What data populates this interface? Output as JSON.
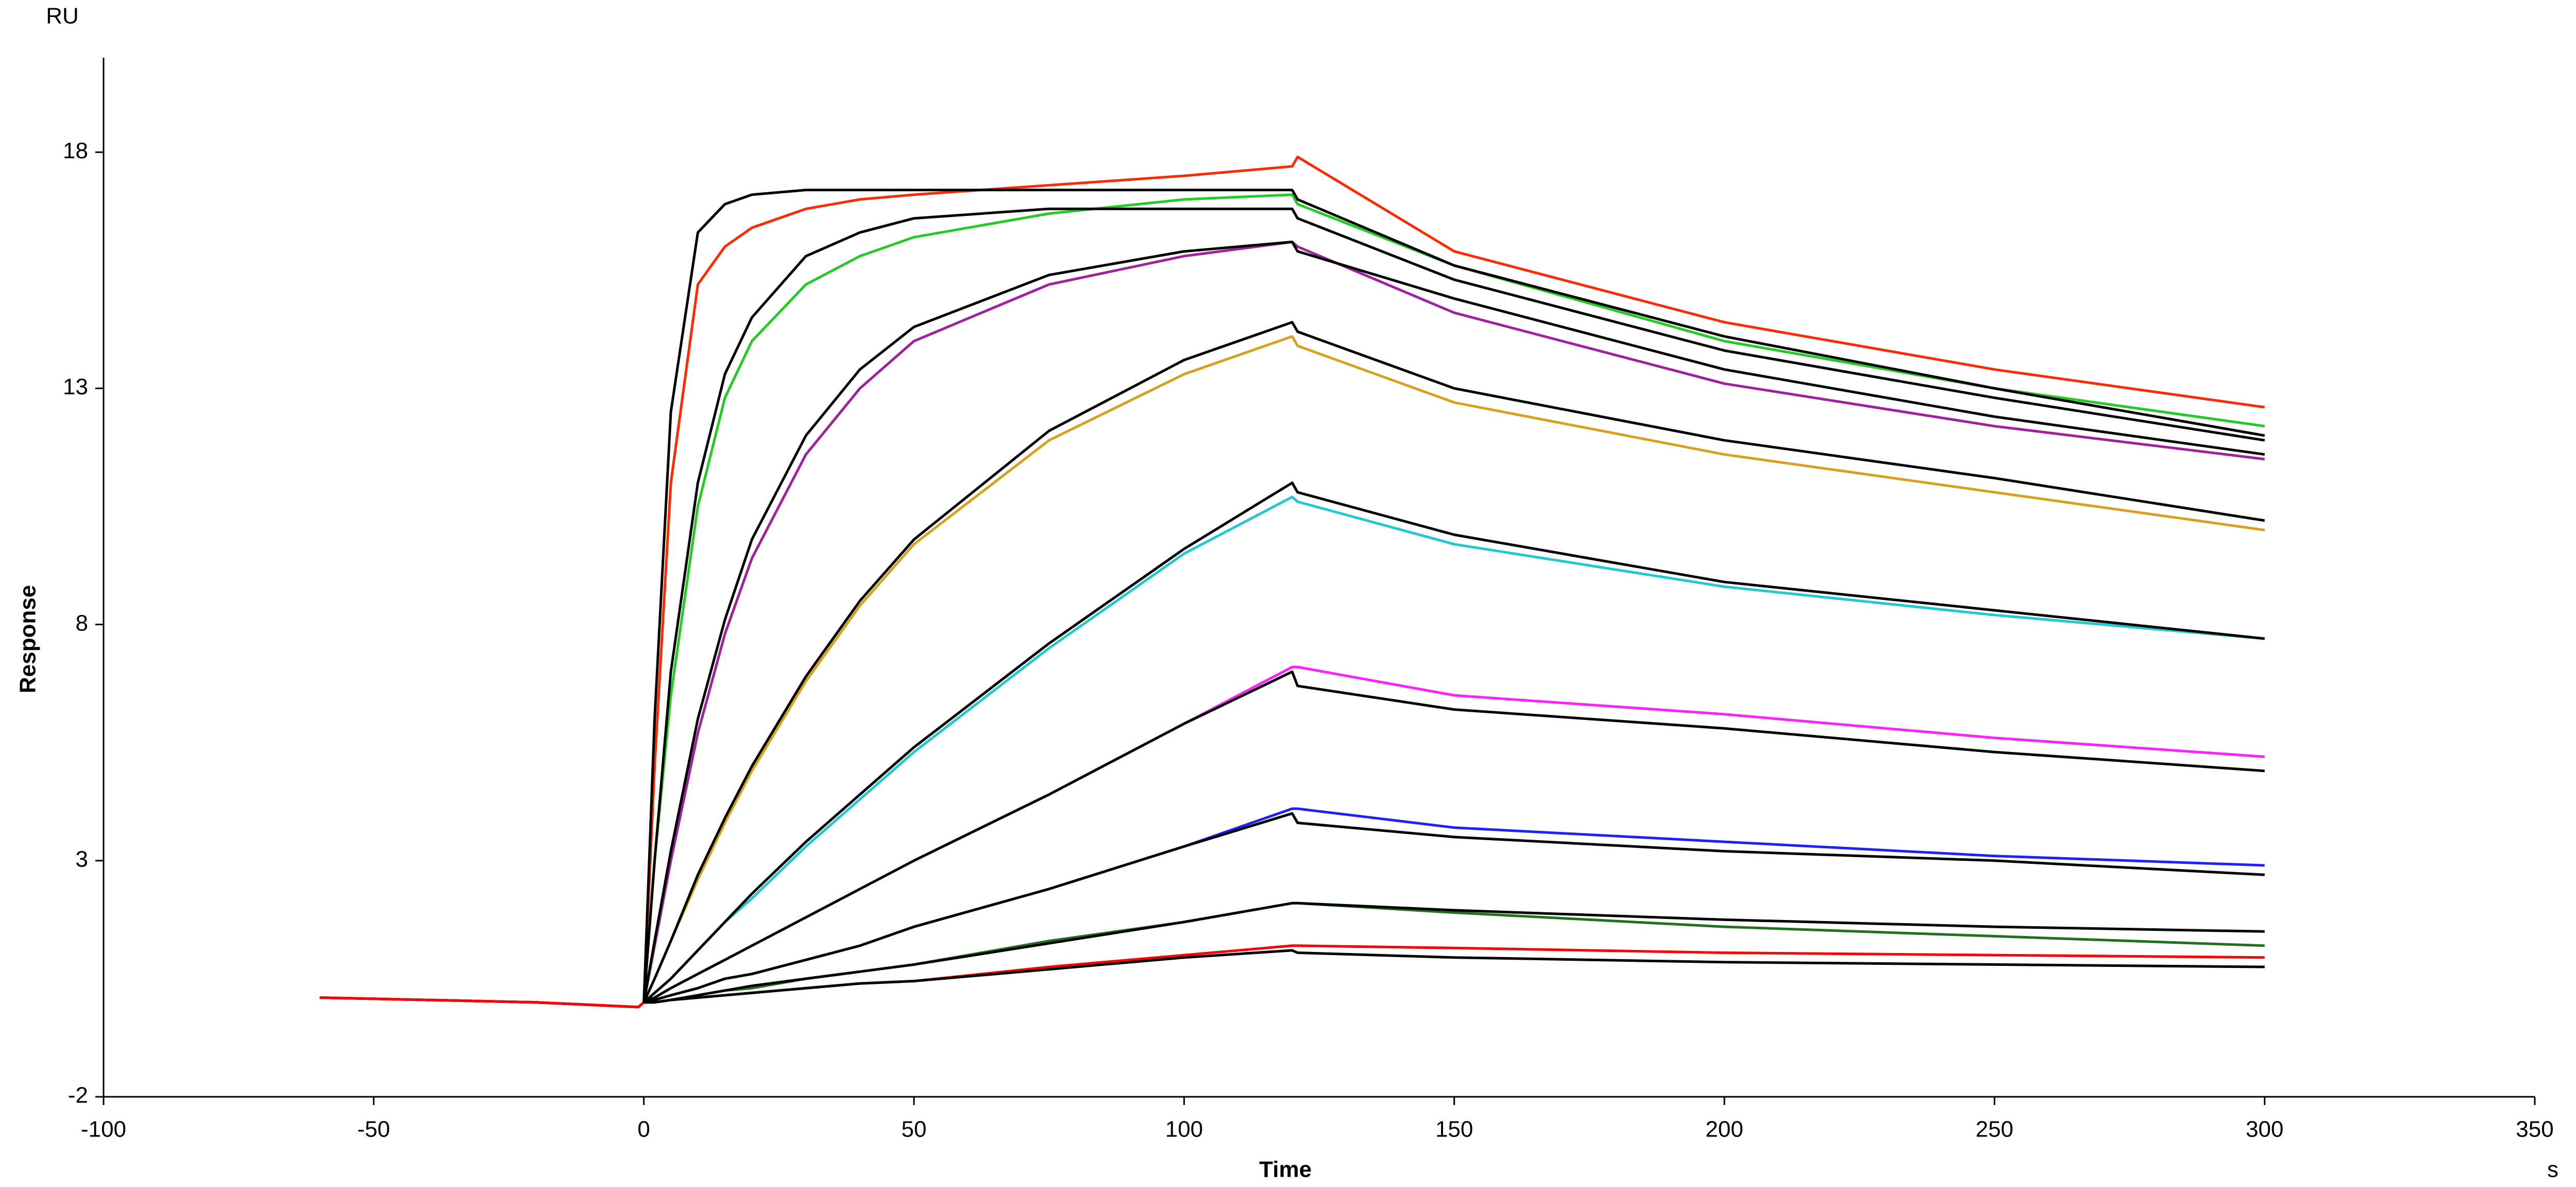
{
  "chart_data": {
    "type": "line",
    "y_unit": "RU",
    "ylabel": "Response",
    "xlabel": "Time",
    "x_unit": "s",
    "x": [
      -60,
      -40,
      -20,
      -1,
      0,
      2,
      5,
      10,
      15,
      20,
      30,
      40,
      50,
      75,
      100,
      120,
      121,
      150,
      200,
      250,
      300
    ],
    "xlim": [
      -100,
      350
    ],
    "xticks": [
      -100,
      -50,
      0,
      50,
      100,
      150,
      200,
      250,
      300,
      350
    ],
    "ylim": [
      -2,
      20
    ],
    "yticks": [
      -2,
      3,
      8,
      13,
      18
    ],
    "grid": false,
    "series": [
      {
        "color": "#ff2a00",
        "values": [
          0.1,
          0.05,
          0,
          -0.1,
          0,
          5,
          11,
          15.2,
          16.0,
          16.4,
          16.8,
          17.0,
          17.1,
          17.3,
          17.5,
          17.7,
          17.9,
          15.9,
          14.4,
          13.4,
          12.6
        ]
      },
      {
        "color": "#22cc22",
        "values": [
          0.1,
          0.05,
          0,
          -0.1,
          0,
          3,
          6.5,
          10.5,
          12.8,
          14.0,
          15.2,
          15.8,
          16.2,
          16.7,
          17.0,
          17.1,
          16.9,
          15.6,
          14.0,
          13.0,
          12.2
        ]
      },
      {
        "color": "#a020a0",
        "values": [
          0.1,
          0.05,
          0,
          -0.1,
          0,
          1.2,
          3,
          5.7,
          7.8,
          9.4,
          11.6,
          13.0,
          14.0,
          15.2,
          15.8,
          16.1,
          16.0,
          14.6,
          13.1,
          12.2,
          11.5
        ]
      },
      {
        "color": "#d9a020",
        "values": [
          0.1,
          0.05,
          0,
          -0.1,
          0,
          0.5,
          1.3,
          2.6,
          3.8,
          4.9,
          6.8,
          8.4,
          9.7,
          11.9,
          13.3,
          14.1,
          13.9,
          12.7,
          11.6,
          10.8,
          10.0
        ]
      },
      {
        "color": "#20c8d0",
        "values": [
          0.1,
          0.05,
          0,
          -0.1,
          0,
          0.2,
          0.5,
          1.1,
          1.7,
          2.2,
          3.3,
          4.3,
          5.3,
          7.5,
          9.5,
          10.7,
          10.6,
          9.7,
          8.8,
          8.2,
          7.7
        ]
      },
      {
        "color": "#ff20ff",
        "values": [
          0.1,
          0.05,
          0,
          -0.1,
          0,
          0.1,
          0.3,
          0.6,
          0.9,
          1.2,
          1.8,
          2.4,
          3.0,
          4.4,
          5.9,
          7.1,
          7.1,
          6.5,
          6.1,
          5.6,
          5.2
        ]
      },
      {
        "color": "#2020ff",
        "values": [
          0.1,
          0.05,
          0,
          -0.1,
          0,
          0.05,
          0.15,
          0.3,
          0.5,
          0.6,
          0.9,
          1.2,
          1.6,
          2.4,
          3.3,
          4.1,
          4.1,
          3.7,
          3.4,
          3.1,
          2.9
        ]
      },
      {
        "color": "#207020",
        "values": [
          0.1,
          0.05,
          0,
          -0.1,
          0,
          0,
          0.05,
          0.15,
          0.25,
          0.3,
          0.5,
          0.65,
          0.8,
          1.3,
          1.7,
          2.1,
          2.1,
          1.9,
          1.6,
          1.4,
          1.2
        ]
      },
      {
        "color": "#ff0000",
        "values": [
          0.1,
          0.05,
          0,
          -0.1,
          0,
          0,
          0.05,
          0.1,
          0.15,
          0.2,
          0.3,
          0.4,
          0.45,
          0.75,
          1.0,
          1.2,
          1.2,
          1.15,
          1.05,
          1.0,
          0.95
        ]
      },
      {
        "color": "#000000",
        "values": [
          null,
          null,
          null,
          null,
          0,
          6,
          12.5,
          16.3,
          16.9,
          17.1,
          17.2,
          17.2,
          17.2,
          17.2,
          17.2,
          17.2,
          17.0,
          15.6,
          14.1,
          13.0,
          12.0
        ]
      },
      {
        "color": "#000000",
        "values": [
          null,
          null,
          null,
          null,
          0,
          3,
          7,
          11,
          13.3,
          14.5,
          15.8,
          16.3,
          16.6,
          16.8,
          16.8,
          16.8,
          16.6,
          15.3,
          13.8,
          12.8,
          11.9
        ]
      },
      {
        "color": "#000000",
        "values": [
          null,
          null,
          null,
          null,
          0,
          1.3,
          3.2,
          6,
          8.1,
          9.8,
          12.0,
          13.4,
          14.3,
          15.4,
          15.9,
          16.1,
          15.9,
          14.9,
          13.4,
          12.4,
          11.6
        ]
      },
      {
        "color": "#000000",
        "values": [
          null,
          null,
          null,
          null,
          0,
          0.5,
          1.3,
          2.7,
          3.9,
          5.0,
          6.9,
          8.5,
          9.8,
          12.1,
          13.6,
          14.4,
          14.2,
          13.0,
          11.9,
          11.1,
          10.2
        ]
      },
      {
        "color": "#000000",
        "values": [
          null,
          null,
          null,
          null,
          0,
          0.2,
          0.5,
          1.1,
          1.7,
          2.3,
          3.4,
          4.4,
          5.4,
          7.6,
          9.6,
          11.0,
          10.8,
          9.9,
          8.9,
          8.3,
          7.7
        ]
      },
      {
        "color": "#000000",
        "values": [
          null,
          null,
          null,
          null,
          0,
          0.1,
          0.3,
          0.6,
          0.9,
          1.2,
          1.8,
          2.4,
          3.0,
          4.4,
          5.9,
          7.0,
          6.7,
          6.2,
          5.8,
          5.3,
          4.9
        ]
      },
      {
        "color": "#000000",
        "values": [
          null,
          null,
          null,
          null,
          0,
          0.05,
          0.15,
          0.3,
          0.5,
          0.6,
          0.9,
          1.2,
          1.6,
          2.4,
          3.3,
          4.0,
          3.8,
          3.5,
          3.2,
          3.0,
          2.7
        ]
      },
      {
        "color": "#000000",
        "values": [
          null,
          null,
          null,
          null,
          0,
          0,
          0.05,
          0.15,
          0.25,
          0.35,
          0.5,
          0.65,
          0.8,
          1.25,
          1.7,
          2.1,
          2.1,
          1.95,
          1.75,
          1.6,
          1.5
        ]
      },
      {
        "color": "#000000",
        "values": [
          null,
          null,
          null,
          null,
          0,
          0,
          0.05,
          0.1,
          0.15,
          0.2,
          0.3,
          0.4,
          0.45,
          0.7,
          0.95,
          1.1,
          1.05,
          0.95,
          0.85,
          0.8,
          0.75
        ]
      }
    ]
  }
}
